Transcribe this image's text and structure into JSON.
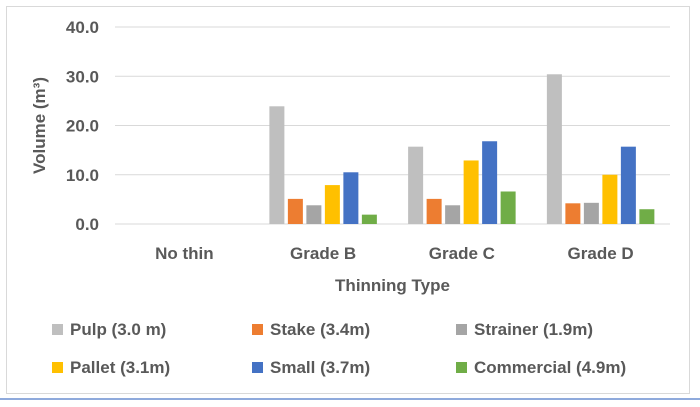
{
  "chart_data": {
    "type": "bar",
    "title": "",
    "xlabel": "Thinning Type",
    "ylabel": "Volume (m³)",
    "ylim": [
      0,
      40
    ],
    "yticks": [
      "0.0",
      "10.0",
      "20.0",
      "30.0",
      "40.0"
    ],
    "grid": true,
    "legend_position": "bottom",
    "categories": [
      "No thin",
      "Grade B",
      "Grade C",
      "Grade D"
    ],
    "series": [
      {
        "name": "Pulp (3.0 m)",
        "color": "#bfbfbf",
        "values": [
          0,
          23.9,
          15.7,
          30.4
        ]
      },
      {
        "name": "Stake (3.4m)",
        "color": "#ed7d31",
        "values": [
          0,
          5.1,
          5.1,
          4.2
        ]
      },
      {
        "name": "Strainer (1.9m)",
        "color": "#a5a5a5",
        "values": [
          0,
          3.8,
          3.8,
          4.3
        ]
      },
      {
        "name": "Pallet (3.1m)",
        "color": "#ffc000",
        "values": [
          0,
          7.9,
          12.9,
          10.0
        ]
      },
      {
        "name": "Small (3.7m)",
        "color": "#4472c4",
        "values": [
          0,
          10.5,
          16.8,
          15.7
        ]
      },
      {
        "name": "Commercial (4.9m)",
        "color": "#70ad47",
        "values": [
          0,
          1.9,
          6.6,
          3.0
        ]
      }
    ]
  }
}
